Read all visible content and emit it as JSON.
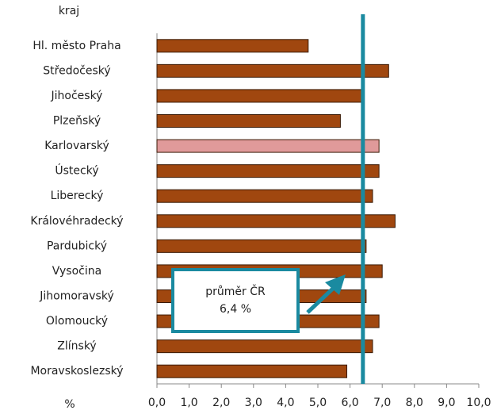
{
  "chart_data": {
    "type": "bar",
    "orientation": "horizontal",
    "y_axis_label": "kraj",
    "x_axis_label": "%",
    "categories": [
      "Hl. město Praha",
      "Středočeský",
      "Jihočeský",
      "Plzeňský",
      "Karlovarský",
      "Ústecký",
      "Liberecký",
      "Královéhradecký",
      "Pardubický",
      "Vysočina",
      "Jihomoravský",
      "Olomoucký",
      "Zlínský",
      "Moravskoslezský"
    ],
    "values": [
      4.7,
      7.2,
      6.4,
      5.7,
      6.9,
      6.9,
      6.7,
      7.4,
      6.5,
      7.0,
      6.5,
      6.9,
      6.7,
      5.9
    ],
    "colors": [
      "#a0470f",
      "#a0470f",
      "#a0470f",
      "#a0470f",
      "#e09a9a",
      "#a0470f",
      "#a0470f",
      "#a0470f",
      "#a0470f",
      "#a0470f",
      "#a0470f",
      "#a0470f",
      "#a0470f",
      "#a0470f"
    ],
    "xlim": [
      0,
      10
    ],
    "xticks": [
      {
        "value": 0,
        "label": "0,0"
      },
      {
        "value": 1,
        "label": "1,0"
      },
      {
        "value": 2,
        "label": "2,0"
      },
      {
        "value": 3,
        "label": "3,0"
      },
      {
        "value": 4,
        "label": "4,0"
      },
      {
        "value": 5,
        "label": "5,0"
      },
      {
        "value": 6,
        "label": "6,0"
      },
      {
        "value": 7,
        "label": "7,0"
      },
      {
        "value": 8,
        "label": "8,0"
      },
      {
        "value": 9,
        "label": "9,0"
      },
      {
        "value": 10,
        "label": "10,0"
      }
    ],
    "average": {
      "value": 6.4,
      "label": "průměr ČR",
      "value_label": "6,4 %",
      "color": "#1a8aa0"
    }
  }
}
